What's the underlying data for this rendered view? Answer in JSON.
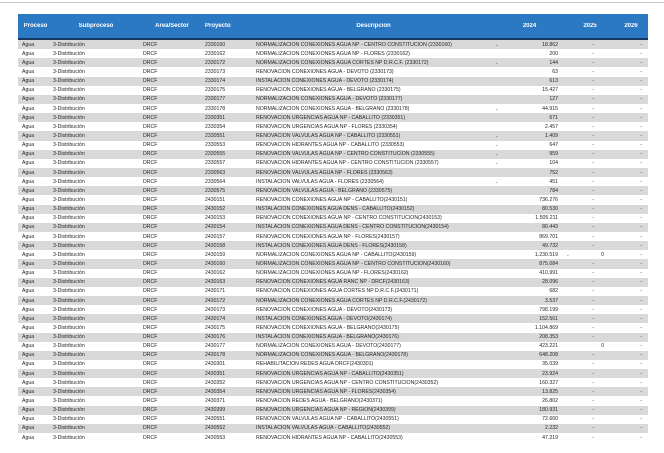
{
  "colors": {
    "header_bg": "#2B79C2",
    "header_text": "#FFFFFF",
    "header_border": "#17375E",
    "stripe": "#D9D9D9",
    "row_text": "#262626",
    "top_rule": "#C9C9C9"
  },
  "table": {
    "headers": {
      "proceso": "Proceso",
      "subproceso": "Subproceso",
      "area": "Área/Sector",
      "proyecto": "Proyecto",
      "descripcion": "Descripción",
      "y2024": "2024",
      "y2025": "2025",
      "y2026": "2026"
    },
    "common": {
      "proceso": "Agua",
      "subproceso": "3-Distribución",
      "area": "DRCF"
    },
    "row_fields": [
      "proyecto",
      "descripcion",
      "s24",
      "v24",
      "s25",
      "v25",
      "v26"
    ],
    "rows": [
      [
        "2330160",
        "NORMALIZACION CONEXIONES AGUA NP - CENTRO CONSTITUCION (2330160)",
        "-",
        "18.862",
        "",
        "-",
        "-"
      ],
      [
        "2330162",
        "NORMALIZACION CONEXIONES AGUA NP - FLORES (2330162)",
        "",
        "200",
        "",
        "-",
        "-"
      ],
      [
        "2330172",
        "NORMALIZACION CONEXIONES AGUA CORTES NP D.R.C.F. (2330172)",
        "-",
        "144",
        "",
        "-",
        "-"
      ],
      [
        "2330173",
        "RENOVACION CONEXIONES AGUA - DEVOTO (2330173)",
        "",
        "63",
        "",
        "-",
        "-"
      ],
      [
        "2330174",
        "INSTALACION CONEXIONES AGUA - DEVOTO (2330174)",
        "",
        "613",
        "",
        "-",
        "-"
      ],
      [
        "2330175",
        "RENOVACION CONEXIONES AGUA - BELGRANO (2330175)",
        "",
        "15.427",
        "",
        "-",
        "-"
      ],
      [
        "2330177",
        "NORMALIZACION CONEXIONES AGUA - DEVOTO (2330177)",
        "",
        "127",
        "",
        "-",
        "-"
      ],
      [
        "2330178",
        "NORMALIZACION CONEXIONES AGUA - BELGRANO (2330178)",
        "-",
        "44.915",
        "",
        "-",
        "-"
      ],
      [
        "2330351",
        "RENOVACION URGENCIAS AGUA NP - CABALLITO (2330351)",
        "",
        "671",
        "",
        "-",
        "-"
      ],
      [
        "2330354",
        "RENOVACION URGENCIAS AGUA NP - FLORES (2330354)",
        "",
        "2.457",
        "",
        "-",
        "-"
      ],
      [
        "2330551",
        "RENOVACION VALVULAS AGUA NP - CABALLITO (2330551)",
        "-",
        "1.409",
        "",
        "-",
        "-"
      ],
      [
        "2330553",
        "RENOVACION HIDRANTES AGUA NP - CABALLITO (2330553)",
        "-",
        "647",
        "",
        "-",
        "-"
      ],
      [
        "2330555",
        "RENOVACION VALVULAS AGUA NP - CENTRO CONSTITUCION (2330555)",
        "-",
        "959",
        "",
        "-",
        "-"
      ],
      [
        "2330557",
        "RENOVACION HIDRANTES AGUA NP - CENTRO CONSTITUCION (2330557)",
        "-",
        "104",
        "",
        "-",
        "-"
      ],
      [
        "2330563",
        "RENOVACION VALVULAS AGUA NP - FLORES (2330563)",
        "",
        "752",
        "",
        "-",
        "-"
      ],
      [
        "2330564",
        "INSTALACION VALVULAS AGUA - FLORES (2330564)",
        "-",
        "451",
        "",
        "-",
        "-"
      ],
      [
        "2330575",
        "RENOVACION VALVULAS AGUA - BELGRANO (2330575)",
        "",
        "784",
        "",
        "-",
        "-"
      ],
      [
        "2430151",
        "RENOVACION CONEXIONES AGUA NP - CABALLITO(2430151)",
        "",
        "736.276",
        "",
        "-",
        "-"
      ],
      [
        "2430152",
        "INSTALACION CONEXIONES AGUA DENS - CABALLITO(2430152)",
        "",
        "80.530",
        "",
        "-",
        "-"
      ],
      [
        "2430153",
        "RENOVACION CONEXIONES AGUA NP - CENTRO CONSTITUCION(2430153)",
        "",
        "1.505.211",
        "",
        "-",
        "-"
      ],
      [
        "2430154",
        "INSTALACION CONEXIONES AGUA DENS - CENTRO CONSTITUCION(2430154)",
        "",
        "80.443",
        "",
        "-",
        "-"
      ],
      [
        "2430157",
        "RENOVACION CONEXIONES AGUA NP - FLORES(2430157)",
        "",
        "869.701",
        "",
        "-",
        "-"
      ],
      [
        "2430158",
        "INSTALACION CONEXIONES AGUA DENS - FLORES(2430158)",
        "",
        "49.732",
        "",
        "-",
        "-"
      ],
      [
        "2430159",
        "NORMALIZACION CONEXIONES AGUA NP - CABALLITO(2430159)",
        "",
        "1.230.519",
        "-",
        "0",
        "-"
      ],
      [
        "2430160",
        "NORMALIZACION CONEXIONES AGUA NP - CENTRO CONSTITUCION(2430160)",
        "",
        "875.084",
        "",
        "-",
        "-"
      ],
      [
        "2430162",
        "NORMALIZACION CONEXIONES AGUA NP - FLORES(2430162)",
        "",
        "410.991",
        "",
        "-",
        "-"
      ],
      [
        "2430163",
        "RENOVACION CONEXIONES AGUA RANC NP - DRCF(2430163)",
        "",
        "28.096",
        "",
        "-",
        "-"
      ],
      [
        "2430171",
        "RENOVACION CONEXIONES AGUA CORTES NP D.R.C.F.(2430171)",
        "",
        "682",
        "",
        "-",
        "-"
      ],
      [
        "2430172",
        "NORMALIZACION CONEXIONES AGUA CORTES NP D.R.C.F.(2430172)",
        "",
        "3.537",
        "",
        "-",
        "-"
      ],
      [
        "2430173",
        "RENOVACION CONEXIONES AGUA - DEVOTO(2430173)",
        "",
        "798.199",
        "",
        "-",
        "-"
      ],
      [
        "2430174",
        "INSTALACION CONEXIONES AGUA - DEVOTO(2430174)",
        "",
        "152.561",
        "",
        "-",
        "-"
      ],
      [
        "2430175",
        "RENOVACION CONEXIONES AGUA - BELGRANO(2430175)",
        "",
        "1.104.869",
        "",
        "-",
        "-"
      ],
      [
        "2430176",
        "INSTALACION CONEXIONES AGUA - BELGRANO(2430176)",
        "",
        "208.353",
        "",
        "-",
        "-"
      ],
      [
        "2430177",
        "NORMALIZACION CONEXIONES AGUA - DEVOTO(2430177)",
        "",
        "423.221",
        "",
        "0",
        "-"
      ],
      [
        "2430178",
        "NORMALIZACION CONEXIONES AGUA - BELGRANO(2430178)",
        "",
        "648.208",
        "",
        "-",
        "-"
      ],
      [
        "2430301",
        "REHABILITACION REDES AGUA DRCF(2430301)",
        "",
        "35.039",
        "",
        "-",
        "-"
      ],
      [
        "2430351",
        "RENOVACION URGENCIAS AGUA NP - CABALLITO(2430351)",
        "",
        "23.924",
        "",
        "-",
        "-"
      ],
      [
        "2430352",
        "RENOVACION URGENCIAS AGUA NP - CENTRO CONSTITUCION(2430352)",
        "",
        "160.327",
        "",
        "-",
        "-"
      ],
      [
        "2430354",
        "RENOVACION URGENCIAS AGUA NP - FLORES(2430354)",
        "",
        "13.825",
        "",
        "-",
        "-"
      ],
      [
        "2430371",
        "RENOVACION REDES AGUA - BELGRANO(2430371)",
        "",
        "26.802",
        "",
        "-",
        "-"
      ],
      [
        "2430399",
        "RENOVACION URGENCIAS AGUA NP - REGION(2430399)",
        "",
        "180.931",
        "",
        "-",
        "-"
      ],
      [
        "2430551",
        "RENOVACION VALVULAS AGUA NP - CABALLITO(2430551)",
        "",
        "72.660",
        "",
        "-",
        "-"
      ],
      [
        "2430552",
        "INSTALACION VALVULAS AGUA - CABALLITO(2430552)",
        "",
        "2.232",
        "",
        "-",
        "-"
      ],
      [
        "2430553",
        "RENOVACION HIDRANTES AGUA NP - CABALLITO(2430553)",
        "",
        "47.219",
        "",
        "-",
        "-"
      ]
    ]
  }
}
